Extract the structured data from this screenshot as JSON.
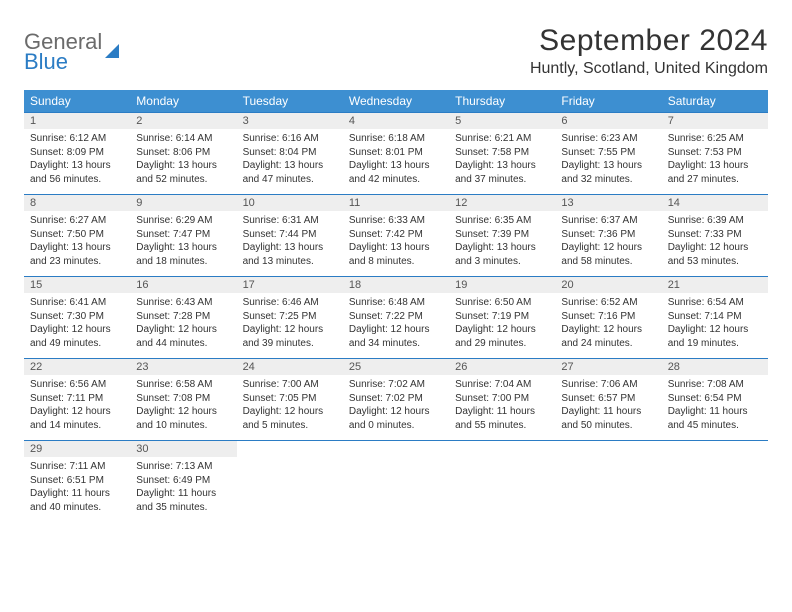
{
  "logo": {
    "line1": "General",
    "line2": "Blue"
  },
  "title": "September 2024",
  "location": "Huntly, Scotland, United Kingdom",
  "colors": {
    "header_bg": "#3d8fd1",
    "header_text": "#ffffff",
    "daynum_bg": "#eeeeee",
    "row_border": "#2b7cc4",
    "logo_gray": "#6b6b6b",
    "logo_blue": "#2b7cc4",
    "body_text": "#333333"
  },
  "day_headers": [
    "Sunday",
    "Monday",
    "Tuesday",
    "Wednesday",
    "Thursday",
    "Friday",
    "Saturday"
  ],
  "weeks": [
    [
      {
        "num": "1",
        "sunrise": "6:12 AM",
        "sunset": "8:09 PM",
        "daylight": "13 hours and 56 minutes."
      },
      {
        "num": "2",
        "sunrise": "6:14 AM",
        "sunset": "8:06 PM",
        "daylight": "13 hours and 52 minutes."
      },
      {
        "num": "3",
        "sunrise": "6:16 AM",
        "sunset": "8:04 PM",
        "daylight": "13 hours and 47 minutes."
      },
      {
        "num": "4",
        "sunrise": "6:18 AM",
        "sunset": "8:01 PM",
        "daylight": "13 hours and 42 minutes."
      },
      {
        "num": "5",
        "sunrise": "6:21 AM",
        "sunset": "7:58 PM",
        "daylight": "13 hours and 37 minutes."
      },
      {
        "num": "6",
        "sunrise": "6:23 AM",
        "sunset": "7:55 PM",
        "daylight": "13 hours and 32 minutes."
      },
      {
        "num": "7",
        "sunrise": "6:25 AM",
        "sunset": "7:53 PM",
        "daylight": "13 hours and 27 minutes."
      }
    ],
    [
      {
        "num": "8",
        "sunrise": "6:27 AM",
        "sunset": "7:50 PM",
        "daylight": "13 hours and 23 minutes."
      },
      {
        "num": "9",
        "sunrise": "6:29 AM",
        "sunset": "7:47 PM",
        "daylight": "13 hours and 18 minutes."
      },
      {
        "num": "10",
        "sunrise": "6:31 AM",
        "sunset": "7:44 PM",
        "daylight": "13 hours and 13 minutes."
      },
      {
        "num": "11",
        "sunrise": "6:33 AM",
        "sunset": "7:42 PM",
        "daylight": "13 hours and 8 minutes."
      },
      {
        "num": "12",
        "sunrise": "6:35 AM",
        "sunset": "7:39 PM",
        "daylight": "13 hours and 3 minutes."
      },
      {
        "num": "13",
        "sunrise": "6:37 AM",
        "sunset": "7:36 PM",
        "daylight": "12 hours and 58 minutes."
      },
      {
        "num": "14",
        "sunrise": "6:39 AM",
        "sunset": "7:33 PM",
        "daylight": "12 hours and 53 minutes."
      }
    ],
    [
      {
        "num": "15",
        "sunrise": "6:41 AM",
        "sunset": "7:30 PM",
        "daylight": "12 hours and 49 minutes."
      },
      {
        "num": "16",
        "sunrise": "6:43 AM",
        "sunset": "7:28 PM",
        "daylight": "12 hours and 44 minutes."
      },
      {
        "num": "17",
        "sunrise": "6:46 AM",
        "sunset": "7:25 PM",
        "daylight": "12 hours and 39 minutes."
      },
      {
        "num": "18",
        "sunrise": "6:48 AM",
        "sunset": "7:22 PM",
        "daylight": "12 hours and 34 minutes."
      },
      {
        "num": "19",
        "sunrise": "6:50 AM",
        "sunset": "7:19 PM",
        "daylight": "12 hours and 29 minutes."
      },
      {
        "num": "20",
        "sunrise": "6:52 AM",
        "sunset": "7:16 PM",
        "daylight": "12 hours and 24 minutes."
      },
      {
        "num": "21",
        "sunrise": "6:54 AM",
        "sunset": "7:14 PM",
        "daylight": "12 hours and 19 minutes."
      }
    ],
    [
      {
        "num": "22",
        "sunrise": "6:56 AM",
        "sunset": "7:11 PM",
        "daylight": "12 hours and 14 minutes."
      },
      {
        "num": "23",
        "sunrise": "6:58 AM",
        "sunset": "7:08 PM",
        "daylight": "12 hours and 10 minutes."
      },
      {
        "num": "24",
        "sunrise": "7:00 AM",
        "sunset": "7:05 PM",
        "daylight": "12 hours and 5 minutes."
      },
      {
        "num": "25",
        "sunrise": "7:02 AM",
        "sunset": "7:02 PM",
        "daylight": "12 hours and 0 minutes."
      },
      {
        "num": "26",
        "sunrise": "7:04 AM",
        "sunset": "7:00 PM",
        "daylight": "11 hours and 55 minutes."
      },
      {
        "num": "27",
        "sunrise": "7:06 AM",
        "sunset": "6:57 PM",
        "daylight": "11 hours and 50 minutes."
      },
      {
        "num": "28",
        "sunrise": "7:08 AM",
        "sunset": "6:54 PM",
        "daylight": "11 hours and 45 minutes."
      }
    ],
    [
      {
        "num": "29",
        "sunrise": "7:11 AM",
        "sunset": "6:51 PM",
        "daylight": "11 hours and 40 minutes."
      },
      {
        "num": "30",
        "sunrise": "7:13 AM",
        "sunset": "6:49 PM",
        "daylight": "11 hours and 35 minutes."
      },
      null,
      null,
      null,
      null,
      null
    ]
  ],
  "labels": {
    "sunrise": "Sunrise: ",
    "sunset": "Sunset: ",
    "daylight": "Daylight: "
  }
}
